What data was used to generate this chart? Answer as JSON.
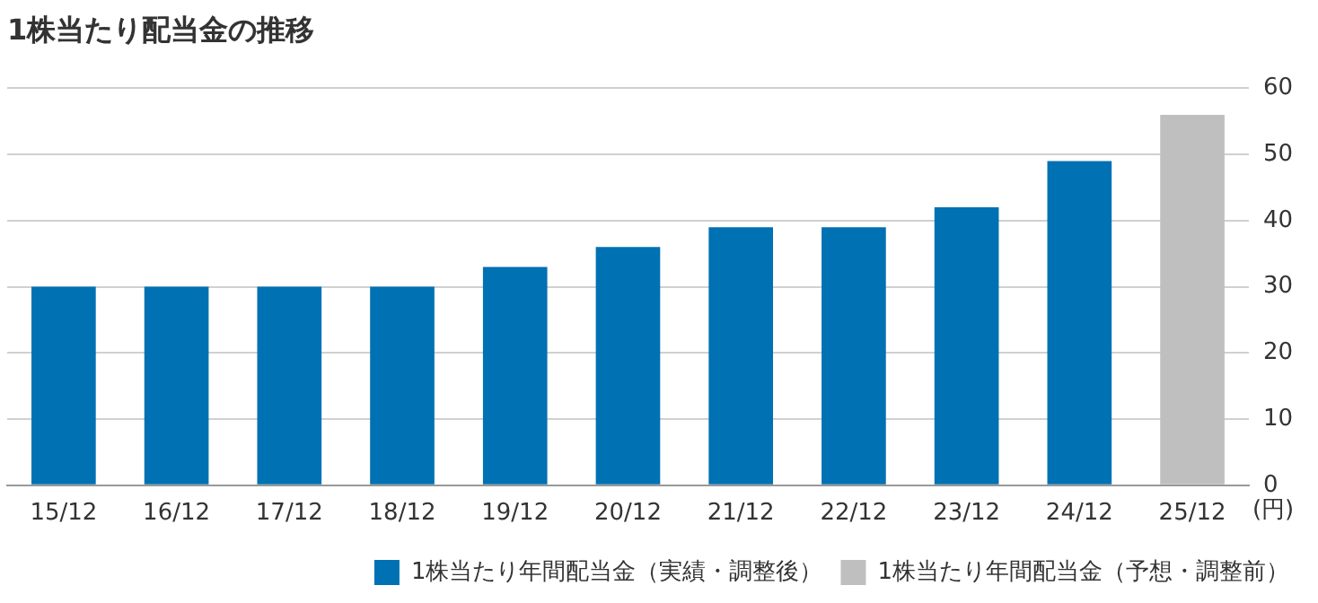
{
  "chart_data": {
    "type": "bar",
    "title": "1株当たり配当金の推移",
    "ylabel": "(円)",
    "categories": [
      "15/12",
      "16/12",
      "17/12",
      "18/12",
      "19/12",
      "20/12",
      "21/12",
      "22/12",
      "23/12",
      "24/12",
      "25/12"
    ],
    "series": [
      {
        "name": "1株当たり年間配当金（実績・調整後）",
        "color": "#0071b3",
        "values": [
          30,
          30,
          30,
          30,
          33,
          36,
          39,
          39,
          42,
          49,
          null
        ]
      },
      {
        "name": "1株当たり年間配当金（予想・調整前）",
        "color": "#bfbfbf",
        "values": [
          null,
          null,
          null,
          null,
          null,
          null,
          null,
          null,
          null,
          null,
          56
        ]
      }
    ],
    "ylim": [
      0,
      60
    ],
    "yticks": [
      0,
      10,
      20,
      30,
      40,
      50,
      60
    ],
    "grid": "y",
    "legend": "bottom"
  }
}
